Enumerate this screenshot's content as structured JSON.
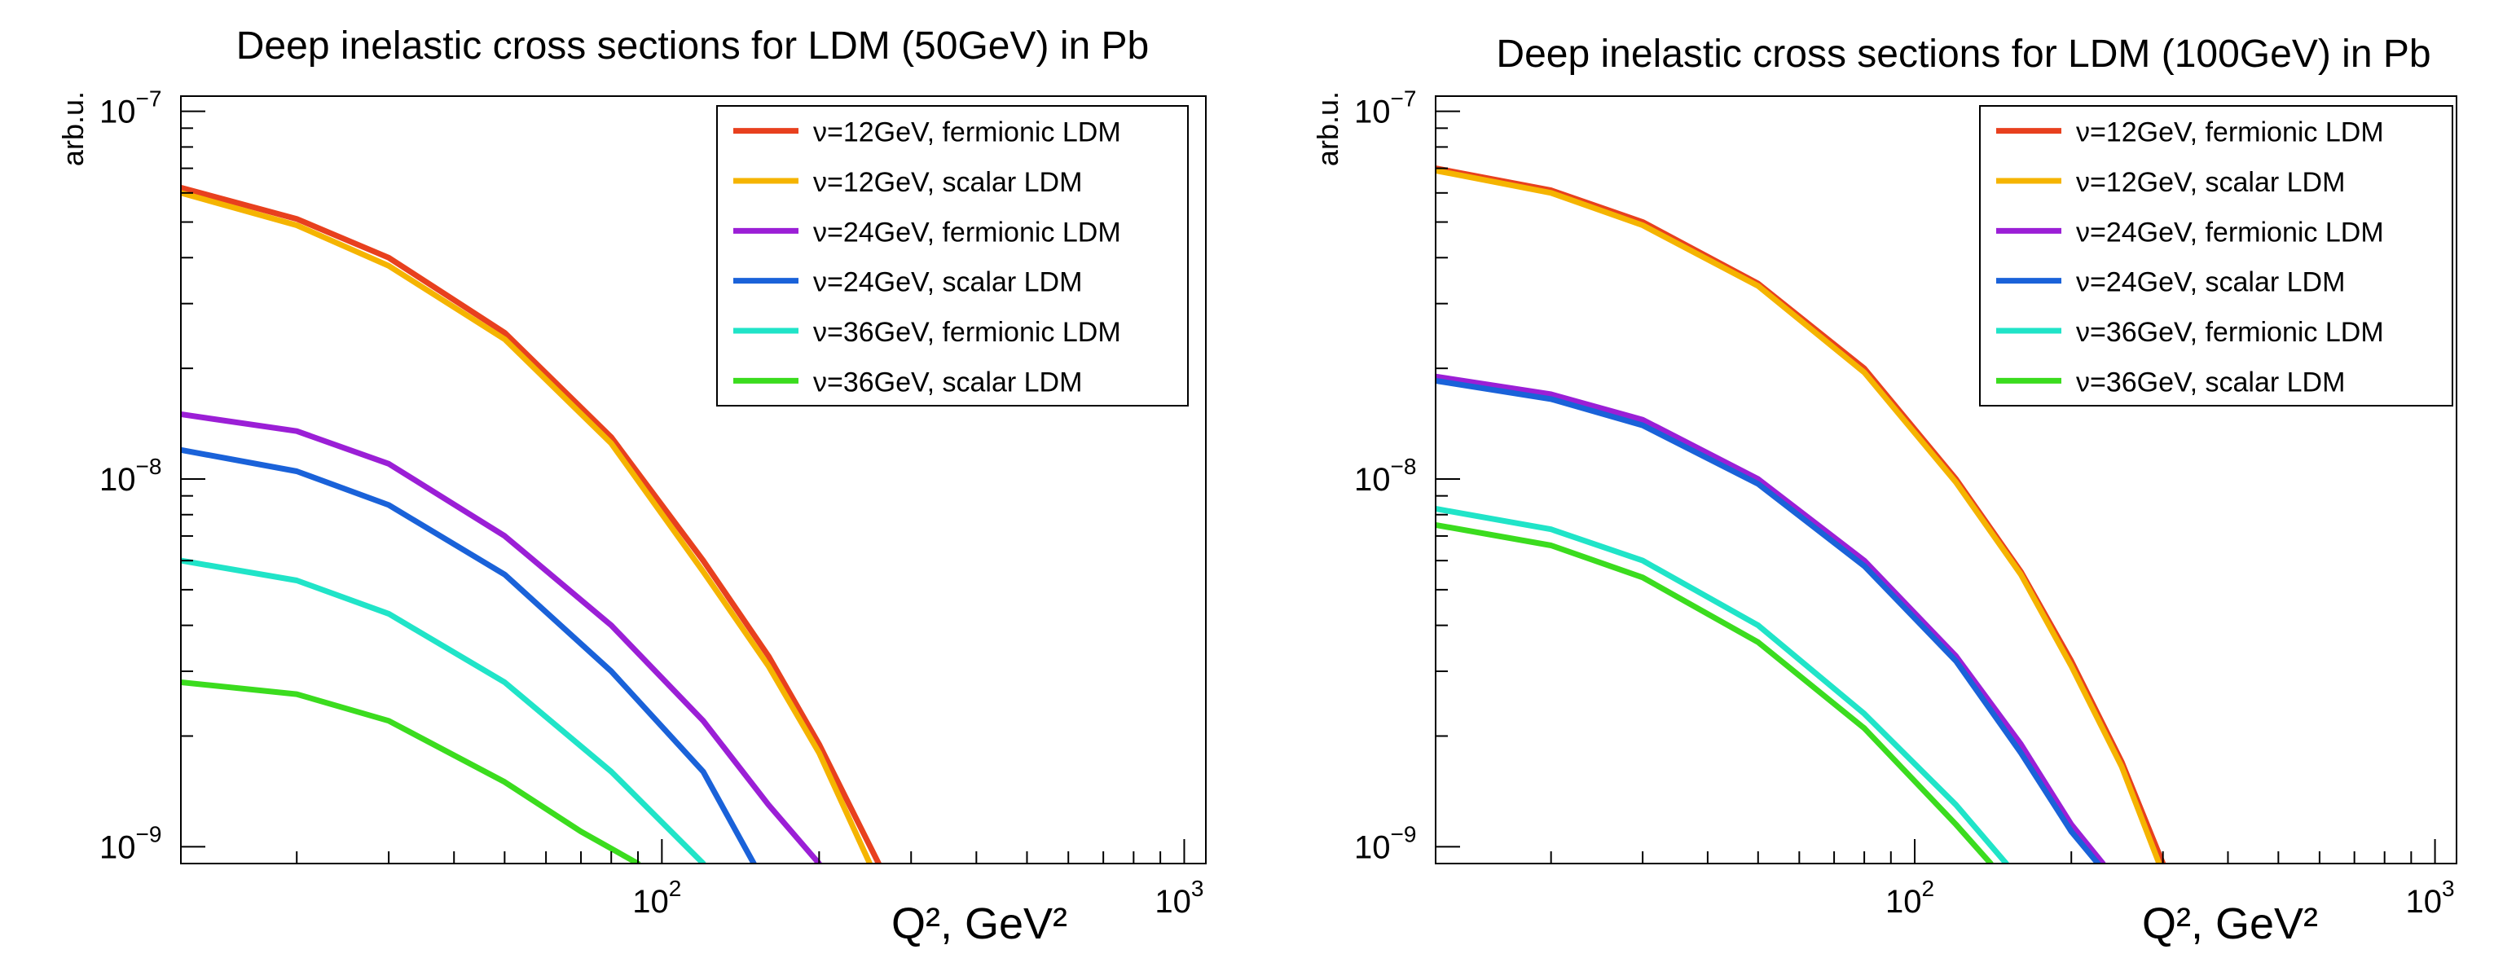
{
  "chart_data": [
    {
      "type": "line",
      "title": "Deep inelastic cross sections for LDM (50GeV) in Pb",
      "xlabel": "Q², GeV²",
      "ylabel": "arb.u.",
      "xscale": "log",
      "yscale": "log",
      "xlim": [
        12,
        1100
      ],
      "ylim": [
        9e-10,
        1.1e-07
      ],
      "x_ticks": [
        {
          "value": 100,
          "base": "10",
          "exp": "2"
        },
        {
          "value": 1000,
          "base": "10",
          "exp": "3"
        }
      ],
      "y_ticks": [
        {
          "value": 1e-09,
          "base": "10",
          "exp": "−9"
        },
        {
          "value": 1e-08,
          "base": "10",
          "exp": "−8"
        },
        {
          "value": 1e-07,
          "base": "10",
          "exp": "−7"
        }
      ],
      "legend_position": "top-right",
      "grid": false,
      "series": [
        {
          "name": "ν=12GeV, fermionic LDM",
          "color": "#e8401e",
          "x": [
            12,
            20,
            30,
            50,
            80,
            120,
            160,
            200,
            260
          ],
          "values": [
            6.2e-08,
            5.1e-08,
            4e-08,
            2.5e-08,
            1.3e-08,
            6e-09,
            3.3e-09,
            1.9e-09,
            9e-10
          ]
        },
        {
          "name": "ν=12GeV, scalar LDM",
          "color": "#f5b400",
          "x": [
            12,
            20,
            30,
            50,
            80,
            120,
            160,
            200,
            250
          ],
          "values": [
            6e-08,
            4.9e-08,
            3.8e-08,
            2.4e-08,
            1.25e-08,
            5.6e-09,
            3.1e-09,
            1.8e-09,
            9e-10
          ]
        },
        {
          "name": "ν=24GeV, fermionic LDM",
          "color": "#9b1fd6",
          "x": [
            12,
            20,
            30,
            50,
            80,
            120,
            160,
            200
          ],
          "values": [
            1.5e-08,
            1.35e-08,
            1.1e-08,
            7e-09,
            4e-09,
            2.2e-09,
            1.3e-09,
            9e-10
          ]
        },
        {
          "name": "ν=24GeV, scalar LDM",
          "color": "#1a62d9",
          "x": [
            12,
            20,
            30,
            50,
            80,
            120,
            150
          ],
          "values": [
            1.2e-08,
            1.05e-08,
            8.5e-09,
            5.5e-09,
            3e-09,
            1.6e-09,
            9e-10
          ]
        },
        {
          "name": "ν=36GeV, fermionic LDM",
          "color": "#20e4c8",
          "x": [
            12,
            20,
            30,
            50,
            80,
            120
          ],
          "values": [
            6e-09,
            5.3e-09,
            4.3e-09,
            2.8e-09,
            1.6e-09,
            9e-10
          ]
        },
        {
          "name": "ν=36GeV, scalar LDM",
          "color": "#3bdc1e",
          "x": [
            12,
            20,
            30,
            50,
            70,
            90
          ],
          "values": [
            2.8e-09,
            2.6e-09,
            2.2e-09,
            1.5e-09,
            1.1e-09,
            9e-10
          ]
        }
      ]
    },
    {
      "type": "line",
      "title": "Deep inelastic cross sections for LDM (100GeV) in Pb",
      "xlabel": "Q², GeV²",
      "ylabel": "arb.u.",
      "xscale": "log",
      "yscale": "log",
      "xlim": [
        12,
        1100
      ],
      "ylim": [
        9e-10,
        1.1e-07
      ],
      "x_ticks": [
        {
          "value": 100,
          "base": "10",
          "exp": "2"
        },
        {
          "value": 1000,
          "base": "10",
          "exp": "3"
        }
      ],
      "y_ticks": [
        {
          "value": 1e-09,
          "base": "10",
          "exp": "−9"
        },
        {
          "value": 1e-08,
          "base": "10",
          "exp": "−8"
        },
        {
          "value": 1e-07,
          "base": "10",
          "exp": "−7"
        }
      ],
      "legend_position": "top-right",
      "grid": false,
      "series": [
        {
          "name": "ν=12GeV, fermionic LDM",
          "color": "#e8401e",
          "x": [
            12,
            20,
            30,
            50,
            80,
            120,
            160,
            200,
            250,
            300
          ],
          "values": [
            7e-08,
            6.1e-08,
            5e-08,
            3.4e-08,
            2e-08,
            1e-08,
            5.6e-09,
            3.2e-09,
            1.7e-09,
            9e-10
          ]
        },
        {
          "name": "ν=12GeV, scalar LDM",
          "color": "#f5b400",
          "x": [
            12,
            20,
            30,
            50,
            80,
            120,
            160,
            200,
            250,
            295
          ],
          "values": [
            6.9e-08,
            6e-08,
            4.9e-08,
            3.35e-08,
            1.95e-08,
            9.8e-09,
            5.5e-09,
            3.1e-09,
            1.65e-09,
            9e-10
          ]
        },
        {
          "name": "ν=24GeV, fermionic LDM",
          "color": "#9b1fd6",
          "x": [
            12,
            20,
            30,
            50,
            80,
            120,
            160,
            200,
            230
          ],
          "values": [
            1.9e-08,
            1.7e-08,
            1.45e-08,
            1e-08,
            6e-09,
            3.3e-09,
            1.9e-09,
            1.15e-09,
            9e-10
          ]
        },
        {
          "name": "ν=24GeV, scalar LDM",
          "color": "#1a62d9",
          "x": [
            12,
            20,
            30,
            50,
            80,
            120,
            160,
            200,
            225
          ],
          "values": [
            1.85e-08,
            1.65e-08,
            1.4e-08,
            9.7e-09,
            5.8e-09,
            3.2e-09,
            1.8e-09,
            1.1e-09,
            9e-10
          ]
        },
        {
          "name": "ν=36GeV, fermionic LDM",
          "color": "#20e4c8",
          "x": [
            12,
            20,
            30,
            50,
            80,
            120,
            150
          ],
          "values": [
            8.3e-09,
            7.3e-09,
            6e-09,
            4e-09,
            2.3e-09,
            1.3e-09,
            9e-10
          ]
        },
        {
          "name": "ν=36GeV, scalar LDM",
          "color": "#3bdc1e",
          "x": [
            12,
            20,
            30,
            50,
            80,
            120,
            140
          ],
          "values": [
            7.5e-09,
            6.6e-09,
            5.4e-09,
            3.6e-09,
            2.1e-09,
            1.15e-09,
            9e-10
          ]
        }
      ]
    }
  ]
}
